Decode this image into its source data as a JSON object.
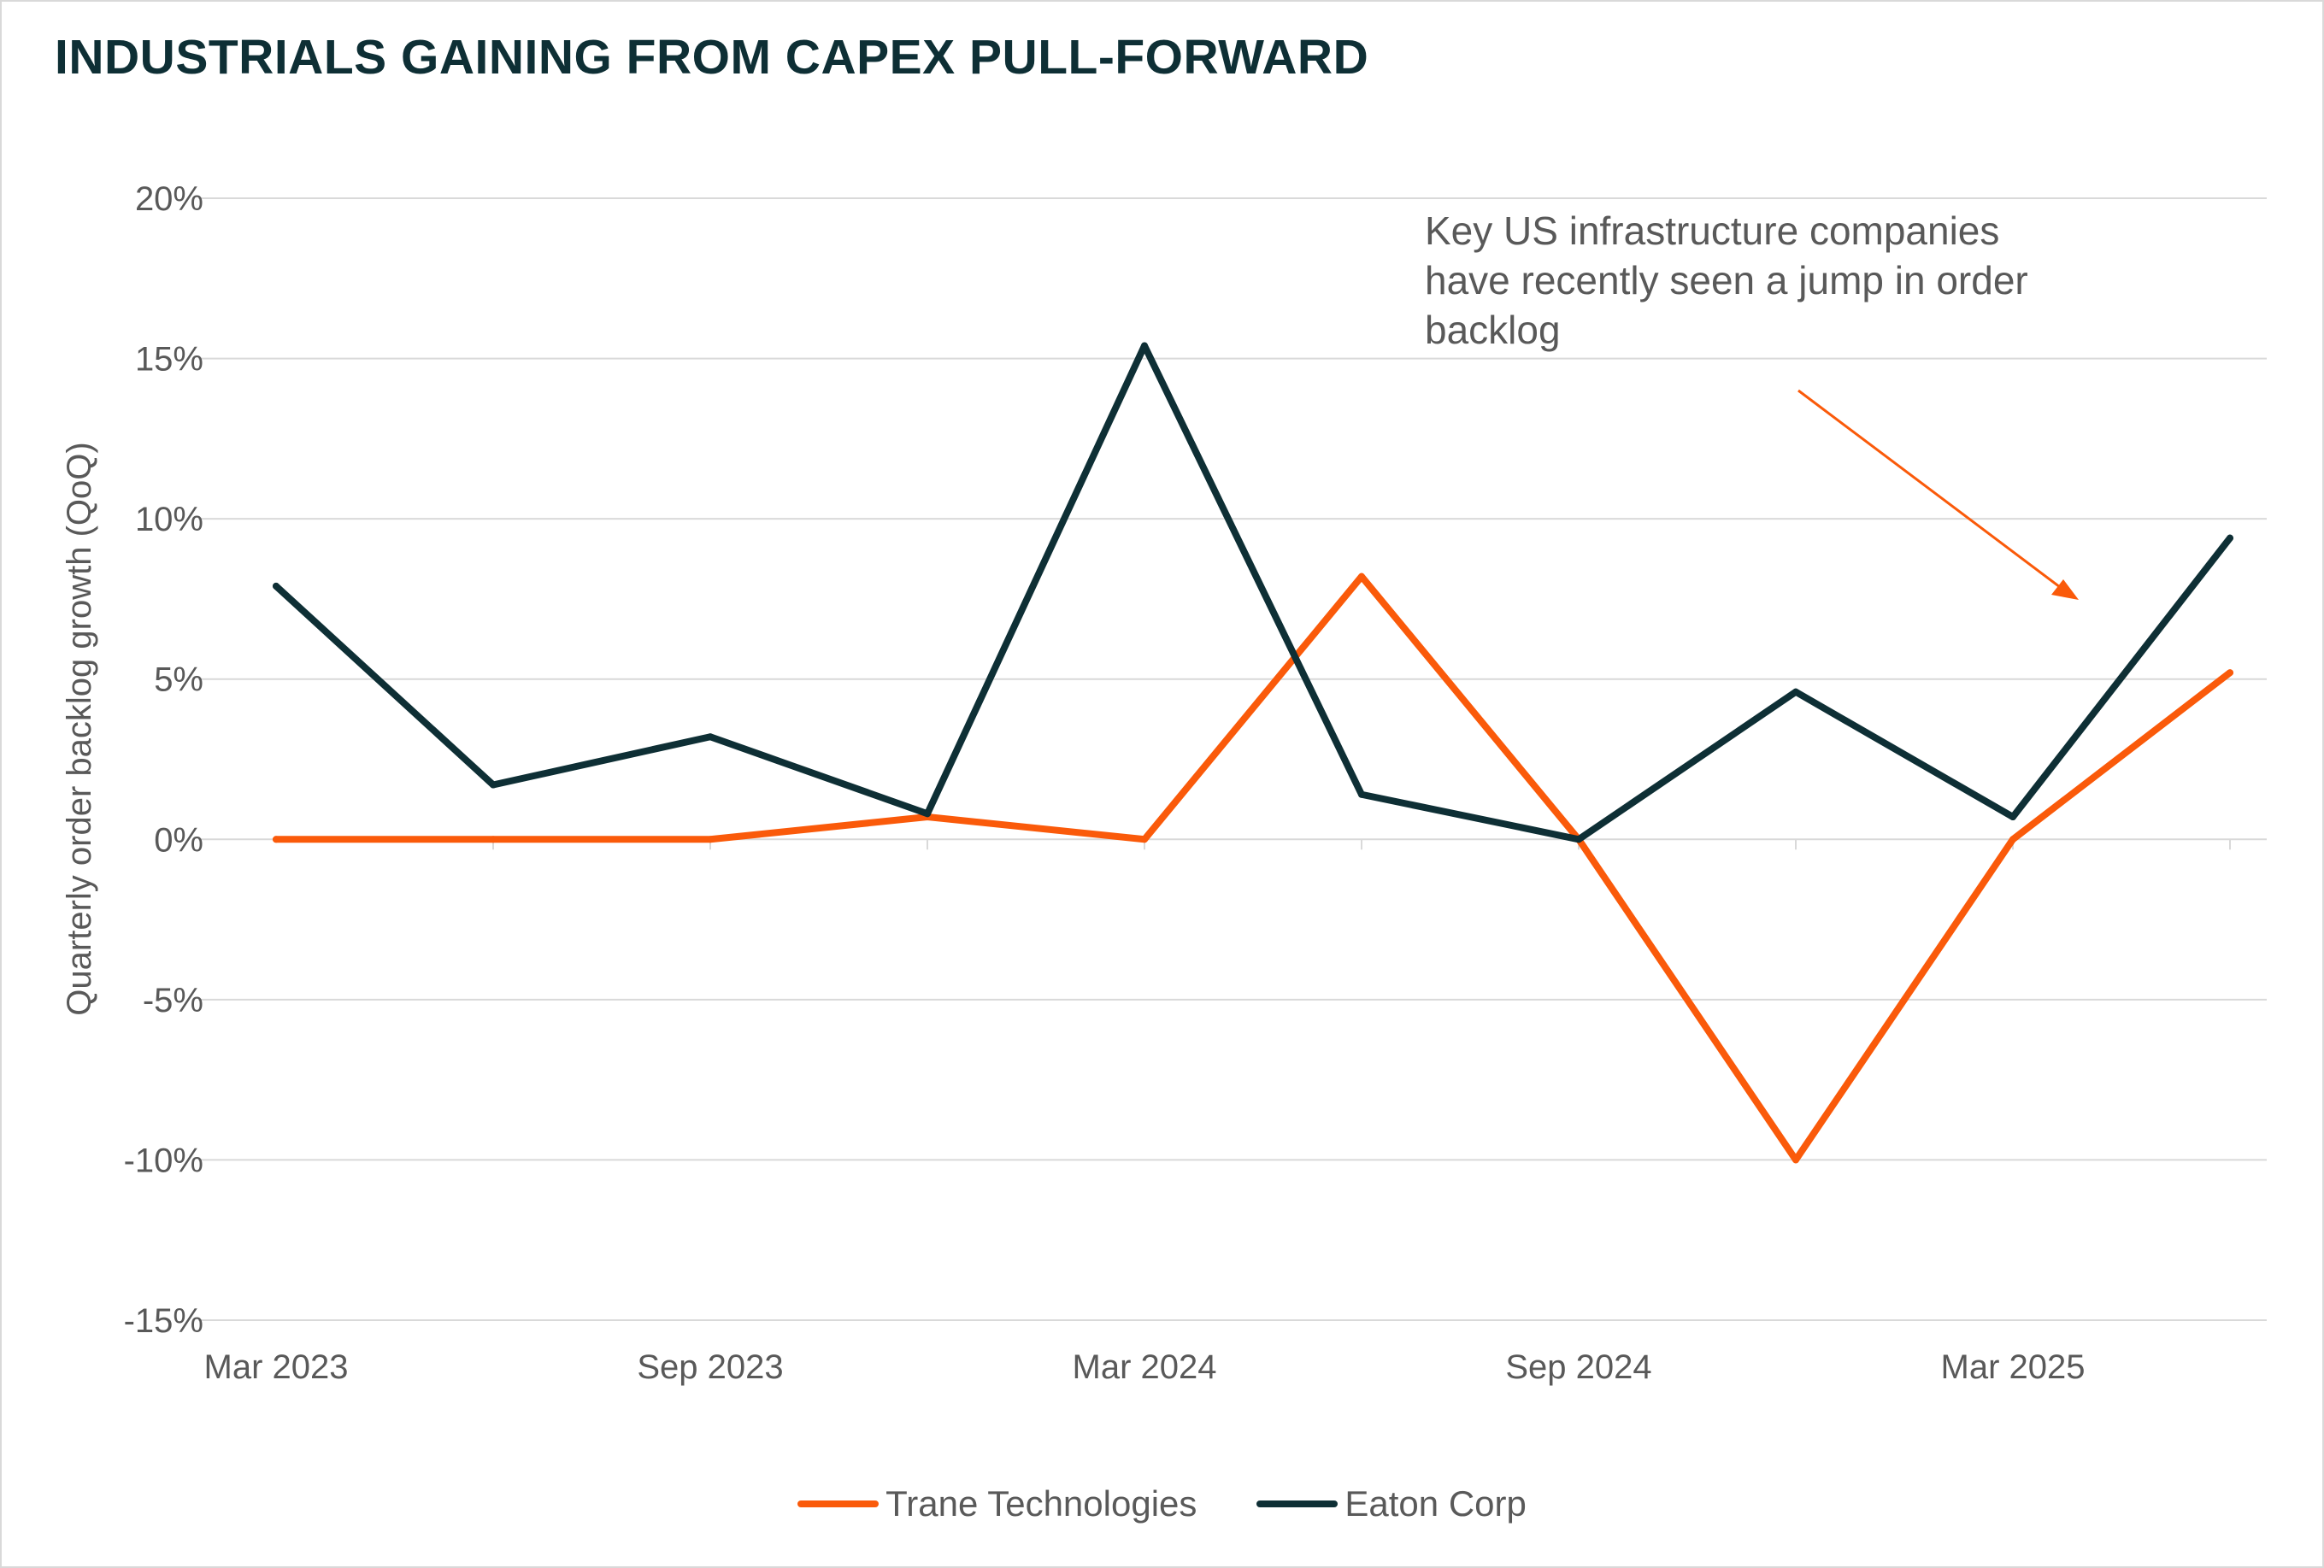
{
  "chart_data": {
    "type": "line",
    "title": "INDUSTRIALS GAINING FROM CAPEX PULL-FORWARD",
    "ylabel": "Quarterly order backlog growth (QoQ)",
    "xlabel": "",
    "ylim": [
      -15,
      20
    ],
    "yticks": [
      20,
      15,
      10,
      5,
      0,
      -5,
      -10,
      -15
    ],
    "ytick_labels": [
      "20%",
      "15%",
      "10%",
      "5%",
      "0%",
      "-5%",
      "-10%",
      "-15%"
    ],
    "x": [
      "Mar 2023",
      "Jun 2023",
      "Sep 2023",
      "Dec 2023",
      "Mar 2024",
      "Jun 2024",
      "Sep 2024",
      "Dec 2024",
      "Mar 2025",
      "Jun 2025"
    ],
    "xtick_labels": [
      "Mar 2023",
      "Sep 2023",
      "Mar 2024",
      "Sep 2024",
      "Mar 2025"
    ],
    "grid": true,
    "legend_position": "bottom",
    "series": [
      {
        "name": "Trane Technologies",
        "color": "#fa5a0a",
        "values": [
          0,
          0,
          0,
          0.7,
          0,
          8.2,
          0,
          -10,
          0,
          5.2
        ]
      },
      {
        "name": "Eaton Corp",
        "color": "#0e2f35",
        "values": [
          7.9,
          1.7,
          3.2,
          0.8,
          15.4,
          1.4,
          0,
          4.6,
          0.7,
          9.4
        ]
      }
    ],
    "annotation": {
      "lines": [
        "Key US infrastructure companies",
        "have recently seen a jump in order",
        "backlog"
      ],
      "arrow_color": "#fa5a0a"
    }
  }
}
